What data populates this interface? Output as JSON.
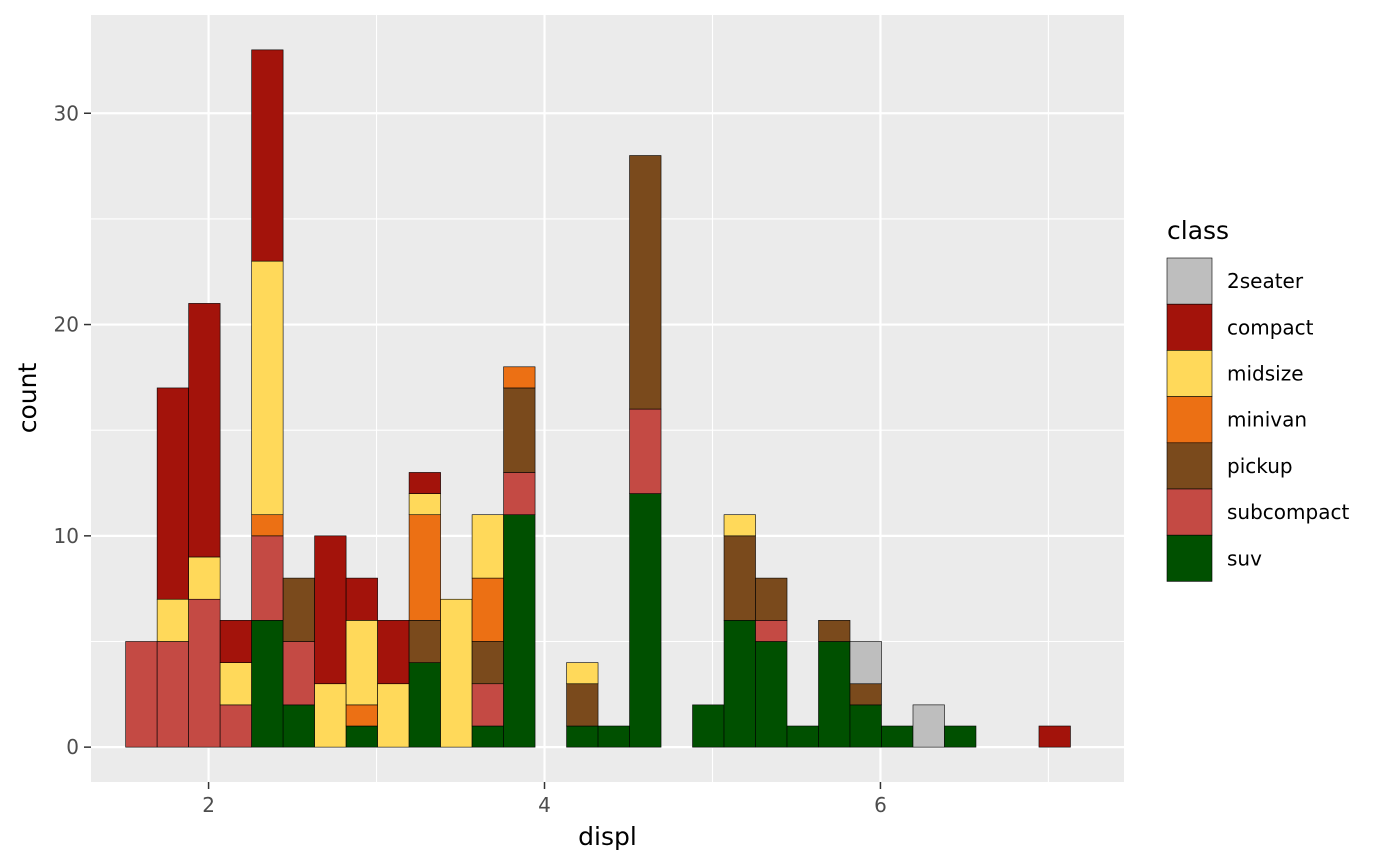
{
  "chart_data": {
    "type": "bar",
    "subtype": "stacked-histogram",
    "title": "",
    "xlabel": "displ",
    "ylabel": "count",
    "xlim": [
      1.3,
      7.45
    ],
    "ylim": [
      -1.65,
      34.65
    ],
    "x_ticks": [
      2,
      4,
      6
    ],
    "y_ticks": [
      0,
      10,
      20,
      30
    ],
    "grid": true,
    "legend": {
      "title": "class",
      "position": "right"
    },
    "bin_width": 0.1875,
    "bin_centers": [
      1.6,
      1.7875,
      1.975,
      2.1625,
      2.35,
      2.5375,
      2.725,
      2.9125,
      3.1,
      3.2875,
      3.475,
      3.6625,
      3.85,
      4.0375,
      4.225,
      4.4125,
      4.6,
      4.7875,
      4.975,
      5.1625,
      5.35,
      5.5375,
      5.725,
      5.9125,
      6.1,
      6.2875,
      6.475,
      6.6625,
      6.85,
      7.0375
    ],
    "series": [
      {
        "name": "2seater",
        "color": "#bebebe",
        "values": [
          0,
          0,
          0,
          0,
          0,
          0,
          0,
          0,
          0,
          0,
          0,
          0,
          0,
          0,
          0,
          0,
          0,
          0,
          0,
          0,
          0,
          0,
          0,
          2,
          0,
          2,
          0,
          0,
          0,
          0
        ]
      },
      {
        "name": "compact",
        "color": "#a3130b",
        "values": [
          0,
          10,
          12,
          2,
          10,
          0,
          7,
          2,
          3,
          1,
          0,
          0,
          0,
          0,
          0,
          0,
          0,
          0,
          0,
          0,
          0,
          0,
          0,
          0,
          0,
          0,
          0,
          0,
          0,
          1
        ]
      },
      {
        "name": "midsize",
        "color": "#ffd95a",
        "values": [
          0,
          2,
          2,
          2,
          12,
          0,
          3,
          4,
          3,
          1,
          7,
          3,
          0,
          0,
          1,
          0,
          0,
          0,
          0,
          1,
          0,
          0,
          0,
          0,
          0,
          0,
          0,
          0,
          0,
          0
        ]
      },
      {
        "name": "minivan",
        "color": "#ec7014",
        "values": [
          0,
          0,
          0,
          0,
          1,
          0,
          0,
          1,
          0,
          5,
          0,
          3,
          1,
          0,
          0,
          0,
          0,
          0,
          0,
          0,
          0,
          0,
          0,
          0,
          0,
          0,
          0,
          0,
          0,
          0
        ]
      },
      {
        "name": "pickup",
        "color": "#7a4a1c",
        "values": [
          0,
          0,
          0,
          0,
          0,
          3,
          0,
          0,
          0,
          2,
          0,
          2,
          4,
          0,
          2,
          0,
          12,
          0,
          0,
          4,
          2,
          0,
          1,
          1,
          0,
          0,
          0,
          0,
          0,
          0
        ]
      },
      {
        "name": "subcompact",
        "color": "#c44a44",
        "values": [
          5,
          5,
          7,
          2,
          4,
          3,
          0,
          0,
          0,
          0,
          0,
          2,
          2,
          0,
          0,
          0,
          4,
          0,
          0,
          0,
          1,
          0,
          0,
          0,
          0,
          0,
          0,
          0,
          0,
          0
        ]
      },
      {
        "name": "suv",
        "color": "#005000",
        "values": [
          0,
          0,
          0,
          0,
          6,
          2,
          0,
          1,
          0,
          4,
          0,
          1,
          11,
          0,
          1,
          1,
          12,
          0,
          2,
          6,
          5,
          1,
          5,
          2,
          1,
          0,
          1,
          0,
          0,
          0
        ]
      }
    ]
  }
}
